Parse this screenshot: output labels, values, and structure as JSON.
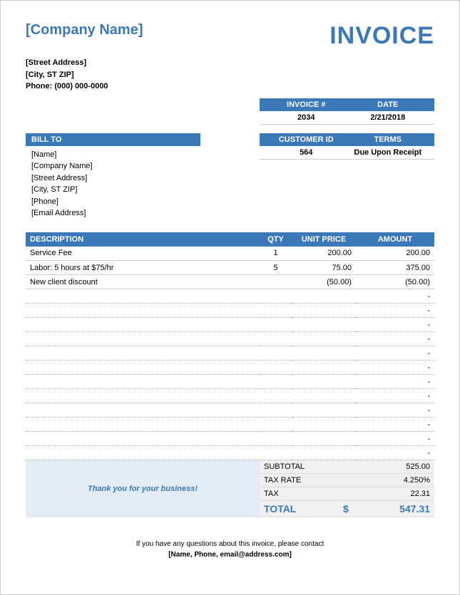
{
  "colors": {
    "accent": "#3b78b8",
    "thanks_bg": "#e3ecf5",
    "totals_bg": "#f0f0f0",
    "border": "#cccccc",
    "dotted": "#aaaaaa"
  },
  "header": {
    "company_name": "[Company Name]",
    "invoice_title": "INVOICE",
    "sender": {
      "street": "[Street Address]",
      "city_st_zip": "[City, ST  ZIP]",
      "phone": "Phone: (000) 000-0000"
    }
  },
  "meta1": {
    "labels": {
      "invoice_no": "INVOICE #",
      "date": "DATE"
    },
    "values": {
      "invoice_no": "2034",
      "date": "2/21/2018"
    }
  },
  "meta2": {
    "labels": {
      "customer_id": "CUSTOMER ID",
      "terms": "TERMS"
    },
    "values": {
      "customer_id": "564",
      "terms": "Due Upon Receipt"
    }
  },
  "bill_to": {
    "label": "BILL TO",
    "lines": {
      "name": "[Name]",
      "company": "[Company Name]",
      "street": "[Street Address]",
      "city_st_zip": "[City, ST  ZIP]",
      "phone": "[Phone]",
      "email": "[Email Address]"
    }
  },
  "table": {
    "headers": {
      "description": "DESCRIPTION",
      "qty": "QTY",
      "unit_price": "UNIT PRICE",
      "amount": "AMOUNT"
    },
    "rows": [
      {
        "desc": "Service Fee",
        "qty": "1",
        "price": "200.00",
        "amount": "200.00"
      },
      {
        "desc": "Labor: 5 hours at $75/hr",
        "qty": "5",
        "price": "75.00",
        "amount": "375.00"
      },
      {
        "desc": "New client discount",
        "qty": "",
        "price": "(50.00)",
        "amount": "(50.00)"
      }
    ],
    "empty_row_dash": "-",
    "empty_rows": 12
  },
  "thanks": "Thank you for your business!",
  "totals": {
    "subtotal": {
      "label": "SUBTOTAL",
      "value": "525.00"
    },
    "tax_rate": {
      "label": "TAX RATE",
      "value": "4.250%"
    },
    "tax": {
      "label": "TAX",
      "value": "22.31"
    },
    "total": {
      "label": "TOTAL",
      "currency": "$",
      "value": "547.31"
    }
  },
  "footer": {
    "line1": "If you have any questions about this invoice, please contact",
    "line2": "[Name, Phone, email@address.com]"
  }
}
